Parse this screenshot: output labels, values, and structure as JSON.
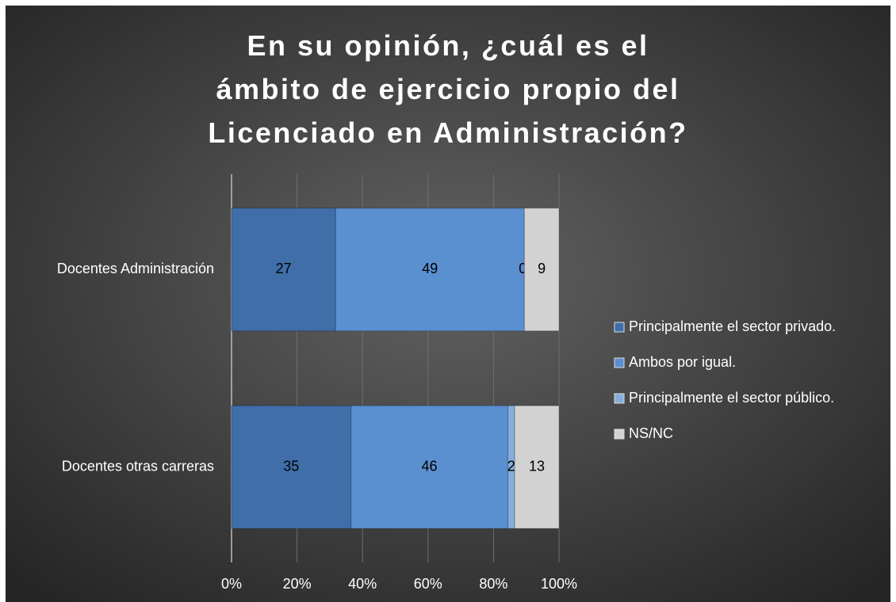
{
  "chart_data": {
    "type": "bar",
    "orientation": "horizontal",
    "stacking": "percent",
    "title": "En su opinión, ¿cuál es el ámbito de ejercicio propio del Licenciado en Administración?",
    "categories": [
      "Docentes Administración",
      "Docentes otras carreras"
    ],
    "series": [
      {
        "name": "Principalmente el sector privado.",
        "color": "#3f6ea9",
        "values": [
          27,
          35
        ]
      },
      {
        "name": "Ambos por igual.",
        "color": "#5a8fd0",
        "values": [
          49,
          46
        ]
      },
      {
        "name": "Principalmente el sector público.",
        "color": "#86aedd",
        "values": [
          0,
          2
        ]
      },
      {
        "name": "NS/NC",
        "color": "#d2d2d2",
        "values": [
          9,
          13
        ]
      }
    ],
    "xlim": [
      0,
      100
    ],
    "xticks": [
      {
        "value": 0,
        "label": "0%"
      },
      {
        "value": 20,
        "label": "20%"
      },
      {
        "value": 40,
        "label": "40%"
      },
      {
        "value": 60,
        "label": "60%"
      },
      {
        "value": 80,
        "label": "80%"
      },
      {
        "value": 100,
        "label": "100%"
      }
    ],
    "grid": true,
    "legend": "right"
  }
}
